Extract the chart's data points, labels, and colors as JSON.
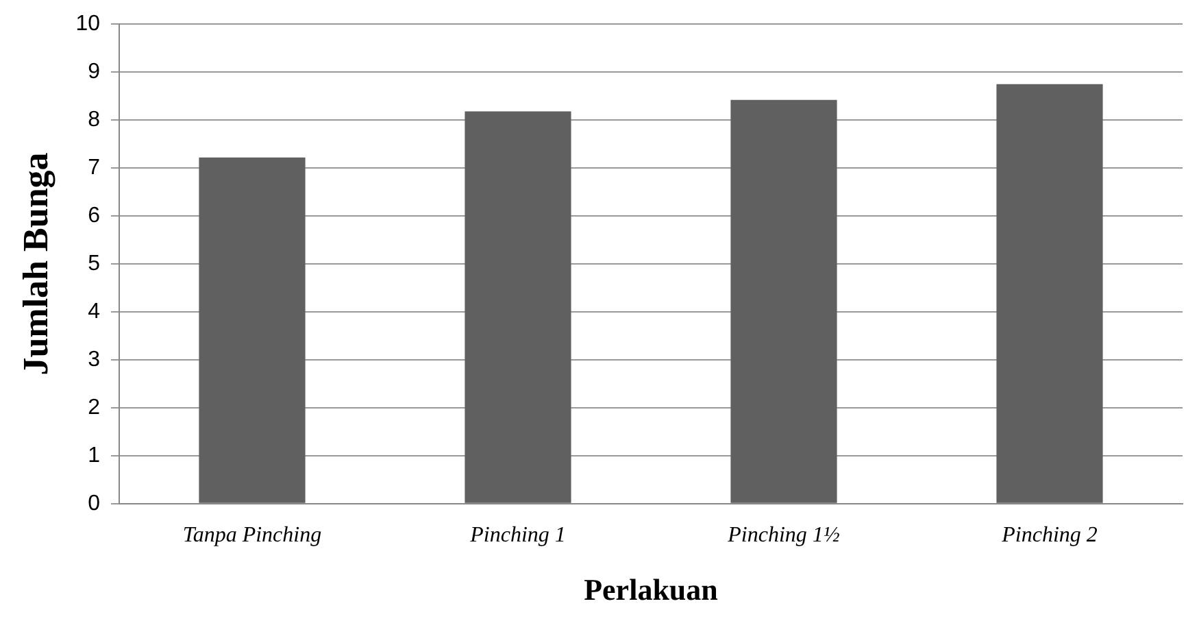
{
  "chart_data": {
    "type": "bar",
    "xlabel": "Perlakuan",
    "ylabel": "Jumlah Bunga",
    "categories": [
      "Tanpa Pinching",
      "Pinching 1",
      "Pinching 1½",
      "Pinching 2"
    ],
    "values": [
      7.22,
      8.18,
      8.42,
      8.75
    ],
    "color": "#606060",
    "ylim": [
      0,
      10
    ],
    "yticks": [
      0,
      1,
      2,
      3,
      4,
      5,
      6,
      7,
      8,
      9,
      10
    ],
    "grid": "y",
    "legend": false
  }
}
